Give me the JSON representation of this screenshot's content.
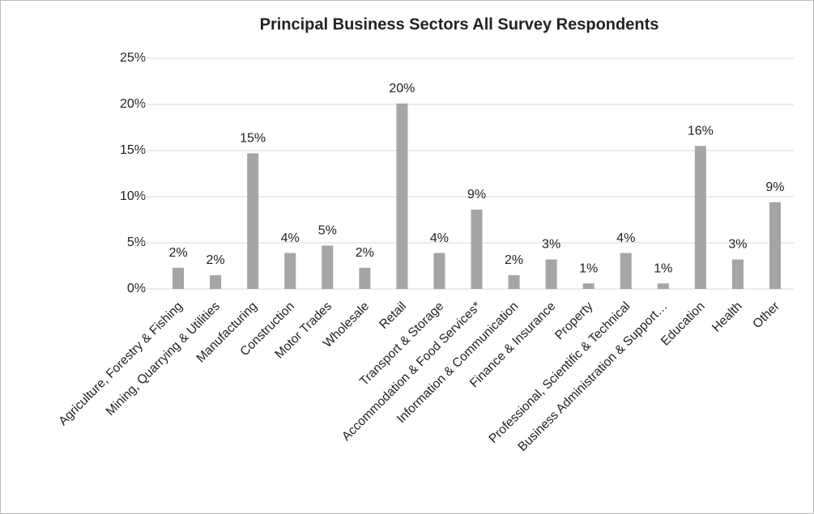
{
  "chart_data": {
    "type": "bar",
    "title": "Principal Business Sectors All Survey Respondents",
    "categories": [
      "Agriculture, Forestry & Fishing",
      "Mining, Quarrying & Utilities",
      "Manufacturing",
      "Construction",
      "Motor Trades",
      "Wholesale",
      "Retail",
      "Transport & Storage",
      "Accommodation & Food Services*",
      "Information & Communication",
      "Finance & Insurance",
      "Property",
      "Professional, Scientific & Technical",
      "Business Administration & Support…",
      "Education",
      "Health",
      "Other"
    ],
    "values": [
      2.3,
      1.5,
      14.7,
      3.9,
      4.7,
      2.3,
      20.1,
      3.9,
      8.6,
      1.5,
      3.2,
      0.6,
      3.9,
      0.6,
      15.5,
      3.2,
      9.4
    ],
    "value_labels": [
      "2%",
      "2%",
      "15%",
      "4%",
      "5%",
      "2%",
      "20%",
      "4%",
      "9%",
      "2%",
      "3%",
      "1%",
      "4%",
      "1%",
      "16%",
      "3%",
      "9%"
    ],
    "color": "#a5a5a5",
    "ylim": [
      0,
      25
    ],
    "yticks": [
      {
        "value": 0,
        "label": "0%"
      },
      {
        "value": 5,
        "label": "5%"
      },
      {
        "value": 10,
        "label": "10%"
      },
      {
        "value": 15,
        "label": "15%"
      },
      {
        "value": 20,
        "label": "20%"
      },
      {
        "value": 25,
        "label": "25%"
      }
    ],
    "grid": true
  }
}
